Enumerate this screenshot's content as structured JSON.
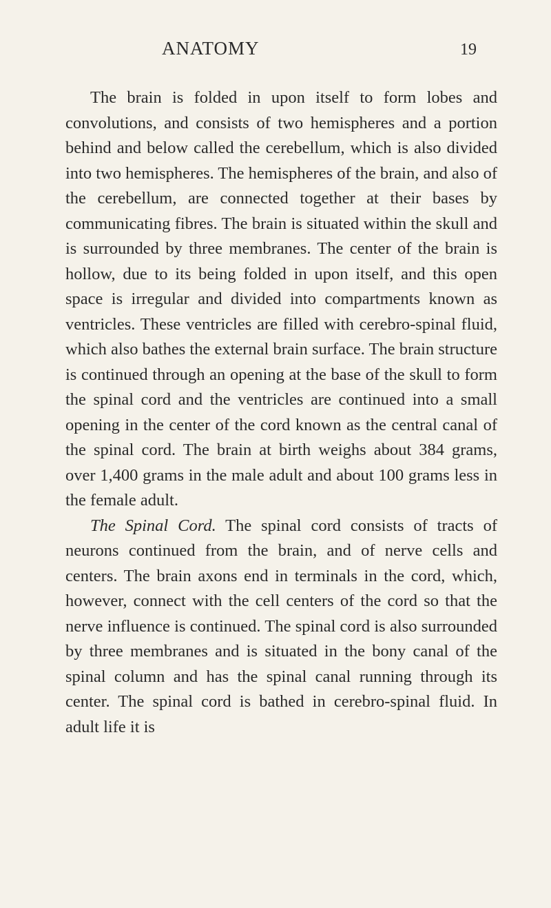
{
  "header": {
    "title": "ANATOMY",
    "pageNumber": "19"
  },
  "paragraphs": {
    "p1": "The brain is folded in upon itself to form lobes and convolutions, and consists of two hemispheres and a portion behind and below called the cerebel­lum, which is also divided into two hemispheres. The hemispheres of the brain, and also of the cerebellum, are connected together at their bases by communicating fibres. The brain is situated within the skull and is surrounded by three mem­branes. The center of the brain is hollow, due to its being folded in upon itself, and this open space is irregular and divided into compartments known as ventricles. These ventricles are filled with cerebro-spinal fluid, which also bathes the ex­ternal brain surface. The brain structure is con­tinued through an opening at the base of the skull to form the spinal cord and the ventricles are con­tinued into a small opening in the center of the cord known as the central canal of the spinal cord. The brain at birth weighs about 384 grams, over 1,400 grams in the male adult and about 100 grams less in the female adult.",
    "p2_italic": "The Spinal Cord.",
    "p2_rest": " The spinal cord consists of tracts of neurons continued from the brain, and of nerve cells and centers. The brain axons end in terminals in the cord, which, however, connect with the cell centers of the cord so that the nerve in­fluence is continued. The spinal cord is also sur­rounded by three membranes and is situated in the bony canal of the spinal column and has the spinal canal running through its center. The spinal cord is bathed in cerebro-spinal fluid. In adult life it is"
  },
  "style": {
    "backgroundColor": "#f5f2ea",
    "textColor": "#2a2a2a",
    "titleFontSize": 27,
    "bodyFontSize": 24.5,
    "lineHeight": 1.49,
    "textIndent": 36,
    "fontFamily": "Georgia, Times New Roman, serif"
  }
}
